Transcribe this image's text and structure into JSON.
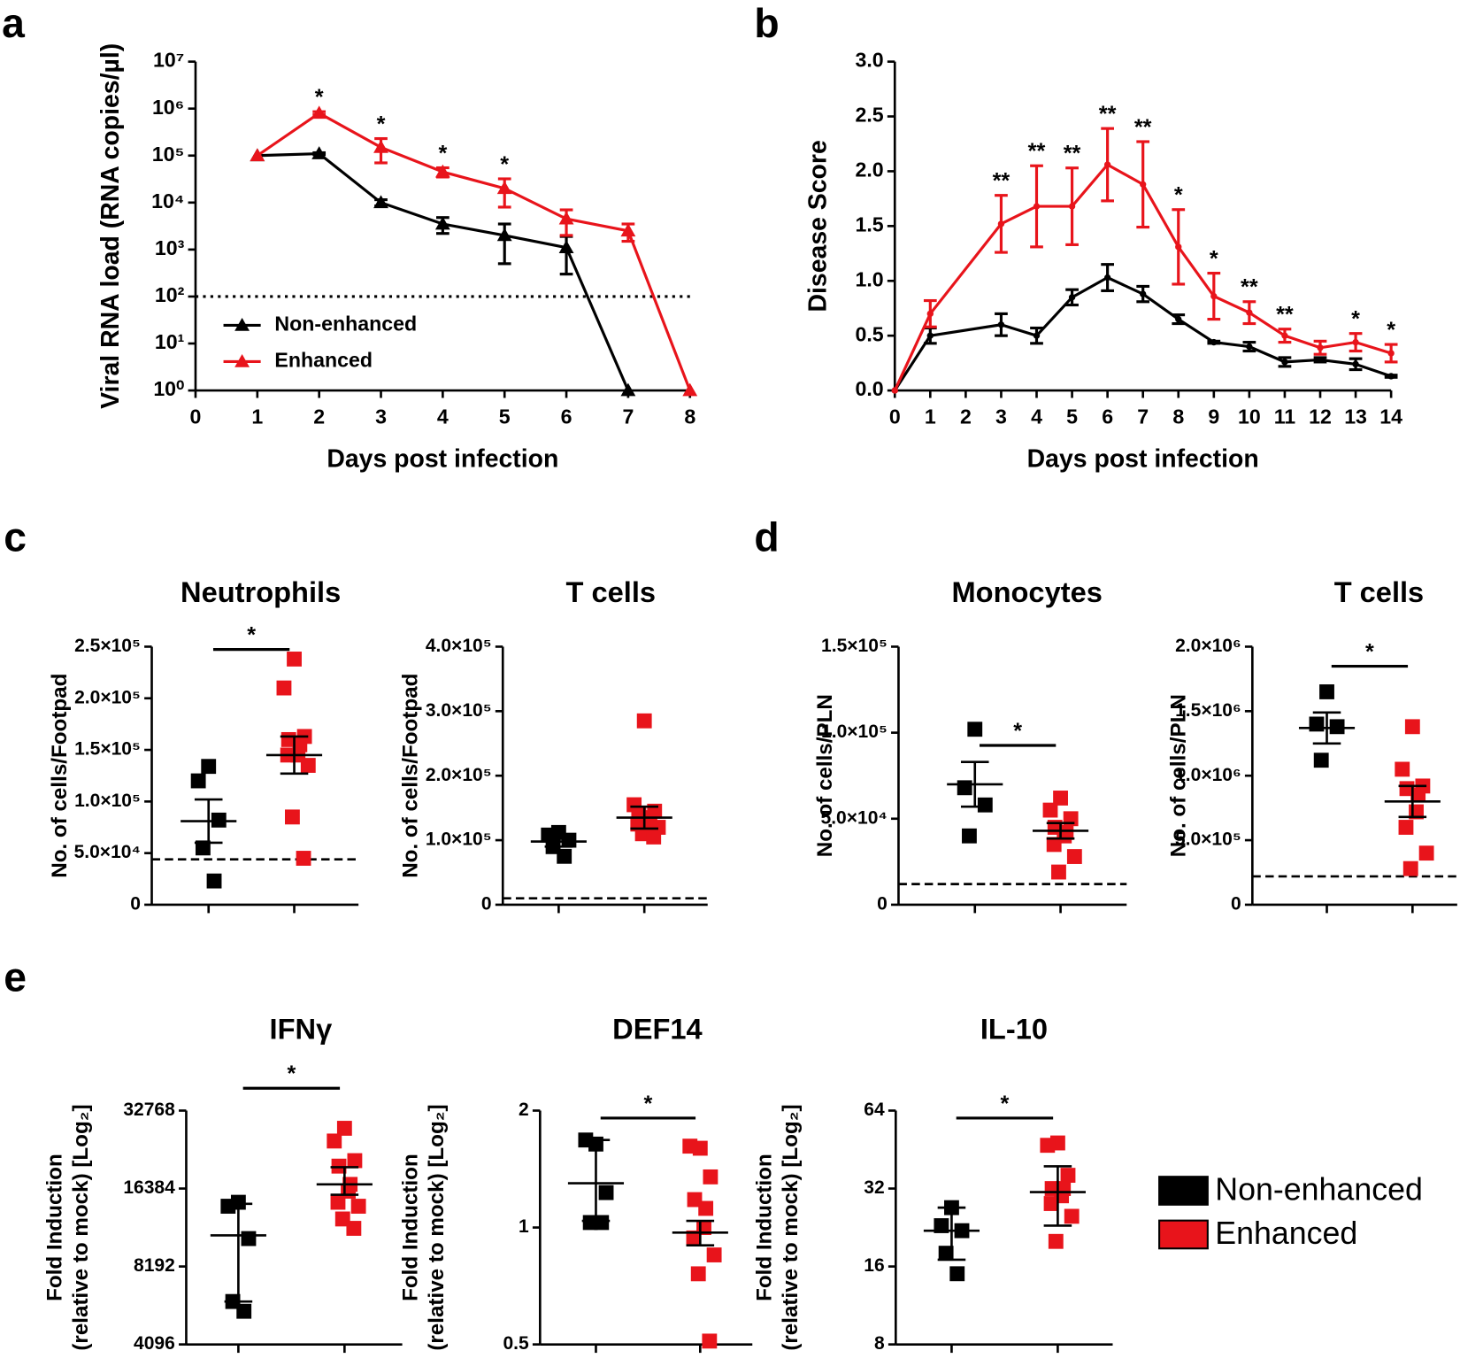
{
  "panel_labels": [
    "a",
    "b",
    "c",
    "d",
    "e"
  ],
  "chart_data": [
    {
      "type": "line",
      "yscale": "log",
      "xlabel": "Days post infection",
      "ylabel": "Viral RNA load (RNA copies/µl)",
      "xlim": [
        0,
        8
      ],
      "xticks": [
        0,
        1,
        2,
        3,
        4,
        5,
        6,
        7,
        8
      ],
      "ylim": [
        1,
        10000000
      ],
      "yticks": [
        {
          "value": 1,
          "label": "10⁰"
        },
        {
          "value": 10,
          "label": "10¹"
        },
        {
          "value": 100,
          "label": "10²"
        },
        {
          "value": 1000,
          "label": "10³"
        },
        {
          "value": 10000,
          "label": "10⁴"
        },
        {
          "value": 100000,
          "label": "10⁵"
        },
        {
          "value": 1000000,
          "label": "10⁶"
        },
        {
          "value": 10000000,
          "label": "10⁷"
        }
      ],
      "detection_limit": 100,
      "marker": "triangle",
      "legend": "left",
      "series": [
        {
          "name": "Non-enhanced",
          "color": "#000000",
          "x": [
            1,
            2,
            3,
            4,
            5,
            6,
            7
          ],
          "values": [
            100000,
            110000,
            10000,
            3500,
            2000,
            1100,
            1
          ],
          "errors": [
            0,
            5000,
            1500,
            1300,
            1500,
            800,
            0
          ]
        },
        {
          "name": "Enhanced",
          "color": "#e8141b",
          "x": [
            1,
            2,
            3,
            4,
            5,
            6,
            7,
            8
          ],
          "values": [
            100000,
            800000,
            150000,
            45000,
            20000,
            4500,
            2500,
            1
          ],
          "errors": [
            0,
            60000,
            80000,
            10000,
            12000,
            2500,
            1000,
            0
          ]
        }
      ],
      "annotations": [
        {
          "x": 2,
          "text": "*"
        },
        {
          "x": 3,
          "text": "*"
        },
        {
          "x": 4,
          "text": "*"
        },
        {
          "x": 5,
          "text": "*"
        }
      ]
    },
    {
      "type": "line",
      "xlabel": "Days post infection",
      "ylabel": "Disease Score",
      "xlim": [
        0,
        14
      ],
      "xticks": [
        0,
        1,
        2,
        3,
        4,
        5,
        6,
        7,
        8,
        9,
        10,
        11,
        12,
        13,
        14
      ],
      "ylim": [
        0,
        3
      ],
      "yticks": [
        {
          "value": 0,
          "label": "0.0"
        },
        0.5,
        {
          "value": 1,
          "label": "1.0"
        },
        1.5,
        {
          "value": 2,
          "label": "2.0"
        },
        2.5,
        {
          "value": 3,
          "label": "3.0"
        }
      ],
      "marker": "dot",
      "x": [
        0,
        1,
        3,
        4,
        5,
        6,
        7,
        8,
        9,
        10,
        11,
        12,
        13,
        14
      ],
      "series": [
        {
          "name": "Non-enhanced",
          "color": "#000000",
          "values": [
            0,
            0.5,
            0.6,
            0.5,
            0.85,
            1.03,
            0.88,
            0.65,
            0.44,
            0.4,
            0.26,
            0.28,
            0.24,
            0.13
          ],
          "errors": [
            0,
            0.07,
            0.1,
            0.07,
            0.07,
            0.12,
            0.07,
            0.04,
            0.01,
            0.04,
            0.04,
            0.02,
            0.05,
            0.01
          ]
        },
        {
          "name": "Enhanced",
          "color": "#e8141b",
          "values": [
            0,
            0.7,
            1.52,
            1.68,
            1.68,
            2.06,
            1.88,
            1.31,
            0.86,
            0.71,
            0.5,
            0.39,
            0.44,
            0.34
          ],
          "errors": [
            0,
            0.12,
            0.26,
            0.37,
            0.35,
            0.33,
            0.39,
            0.34,
            0.21,
            0.1,
            0.06,
            0.06,
            0.08,
            0.08
          ]
        }
      ],
      "annotations": [
        {
          "x": 3,
          "text": "**"
        },
        {
          "x": 4,
          "text": "**"
        },
        {
          "x": 5,
          "text": "**"
        },
        {
          "x": 6,
          "text": "**"
        },
        {
          "x": 7,
          "text": "**"
        },
        {
          "x": 8,
          "text": "*"
        },
        {
          "x": 9,
          "text": "*"
        },
        {
          "x": 10,
          "text": "**"
        },
        {
          "x": 11,
          "text": "**"
        },
        {
          "x": 13,
          "text": "*"
        },
        {
          "x": 14,
          "text": "*"
        }
      ]
    },
    {
      "type": "dot",
      "title": "Neutrophils",
      "ylabel": [
        "No. of cells/Footpad"
      ],
      "ylim": [
        0,
        250000
      ],
      "yticks": [
        0,
        {
          "value": 50000,
          "label": "5.0×10⁴"
        },
        {
          "value": 100000,
          "label": "1.0×10⁵"
        },
        {
          "value": 150000,
          "label": "1.5×10⁵"
        },
        {
          "value": 200000,
          "label": "2.0×10⁵"
        },
        {
          "value": 250000,
          "label": "2.5×10⁵"
        }
      ],
      "detection_limit": 44000,
      "significance": "*",
      "series": [
        {
          "name": "Non-enhanced",
          "color": "#000000",
          "values": [
            134000,
            120000,
            82000,
            55000,
            23000
          ],
          "mean": 81000,
          "sem": 21000
        },
        {
          "name": "Enhanced",
          "color": "#e8141b",
          "values": [
            238000,
            210000,
            163000,
            160000,
            155000,
            145000,
            145000,
            135000,
            85000,
            45000
          ],
          "mean": 145000,
          "sem": 18000
        }
      ]
    },
    {
      "type": "dot",
      "title": "T cells",
      "ylabel": [
        "No. of cells/Footpad"
      ],
      "ylim": [
        0,
        400000
      ],
      "yticks": [
        0,
        {
          "value": 100000,
          "label": "1.0×10⁵"
        },
        {
          "value": 200000,
          "label": "2.0×10⁵"
        },
        {
          "value": 300000,
          "label": "3.0×10⁵"
        },
        {
          "value": 400000,
          "label": "4.0×10⁵"
        }
      ],
      "detection_limit": 10000,
      "series": [
        {
          "name": "Non-enhanced",
          "color": "#000000",
          "values": [
            112000,
            108000,
            100000,
            90000,
            75000
          ],
          "mean": 98000,
          "sem": 8000
        },
        {
          "name": "Enhanced",
          "color": "#e8141b",
          "values": [
            285000,
            155000,
            145000,
            140000,
            135000,
            130000,
            125000,
            120000,
            110000,
            105000
          ],
          "mean": 135000,
          "sem": 17000
        }
      ]
    },
    {
      "type": "dot",
      "title": "Monocytes",
      "ylabel": [
        "No. of cells/PLN"
      ],
      "ylim": [
        0,
        150000
      ],
      "yticks": [
        0,
        {
          "value": 50000,
          "label": "5.0×10⁴"
        },
        {
          "value": 100000,
          "label": "1.0×10⁵"
        },
        {
          "value": 150000,
          "label": "1.5×10⁵"
        }
      ],
      "detection_limit": 12000,
      "significance": "*",
      "series": [
        {
          "name": "Non-enhanced",
          "color": "#000000",
          "values": [
            102000,
            68000,
            58000,
            40000
          ],
          "mean": 70000,
          "sem": 13000
        },
        {
          "name": "Enhanced",
          "color": "#e8141b",
          "values": [
            62000,
            55000,
            50000,
            45000,
            42000,
            40000,
            35000,
            28000,
            19000
          ],
          "mean": 43000,
          "sem": 4500
        }
      ]
    },
    {
      "type": "dot",
      "title": "T cells",
      "ylabel": [
        "No. of cells/PLN"
      ],
      "ylim": [
        0,
        2000000
      ],
      "yticks": [
        0,
        {
          "value": 500000,
          "label": "5.0×10⁵"
        },
        {
          "value": 1000000,
          "label": "1.0×10⁶"
        },
        {
          "value": 1500000,
          "label": "1.5×10⁶"
        },
        {
          "value": 2000000,
          "label": "2.0×10⁶"
        }
      ],
      "detection_limit": 220000,
      "significance": "*",
      "series": [
        {
          "name": "Non-enhanced",
          "color": "#000000",
          "values": [
            1650000,
            1400000,
            1380000,
            1120000
          ],
          "mean": 1370000,
          "sem": 120000
        },
        {
          "name": "Enhanced",
          "color": "#e8141b",
          "values": [
            1380000,
            1050000,
            920000,
            900000,
            850000,
            720000,
            600000,
            400000,
            280000
          ],
          "mean": 800000,
          "sem": 120000
        }
      ]
    },
    {
      "type": "dot",
      "yscale": "log",
      "title": "IFNγ",
      "ylabel": [
        "Fold Induction",
        "(relative to mock) [Log₂]"
      ],
      "ylim": [
        4096,
        32768
      ],
      "yticks": [
        4096,
        8192,
        16384,
        32768
      ],
      "significance": "*",
      "series": [
        {
          "name": "Non-enhanced",
          "color": "#000000",
          "values": [
            14500,
            14000,
            10500,
            6000,
            5500
          ],
          "mean": 10800,
          "low": 6000,
          "high": 14300
        },
        {
          "name": "Enhanced",
          "color": "#e8141b",
          "values": [
            28000,
            25000,
            21000,
            20000,
            17000,
            16000,
            14500,
            14000,
            12500,
            11500
          ],
          "mean": 17000,
          "low": 15500,
          "high": 19800
        }
      ]
    },
    {
      "type": "dot",
      "yscale": "log",
      "title": "DEF14",
      "ylabel": [
        "Fold Induction",
        "(relative to mock) [Log₂]"
      ],
      "ylim": [
        0.5,
        2
      ],
      "yticks": [
        0.5,
        1,
        2
      ],
      "significance": "*",
      "series": [
        {
          "name": "Non-enhanced",
          "color": "#000000",
          "values": [
            1.64,
            1.68,
            1.23,
            1.03,
            1.03
          ],
          "mean": 1.3,
          "low": 1.04,
          "high": 1.68
        },
        {
          "name": "Enhanced",
          "color": "#e8141b",
          "values": [
            1.6,
            1.62,
            1.35,
            1.18,
            1.12,
            1.0,
            0.94,
            0.85,
            0.76,
            0.51
          ],
          "mean": 0.97,
          "low": 0.9,
          "high": 1.04
        }
      ]
    },
    {
      "type": "dot",
      "yscale": "log",
      "title": "IL-10",
      "ylabel": [
        "Fold Induction",
        "(relative to mock) [Log₂]"
      ],
      "ylim": [
        8,
        64
      ],
      "yticks": [
        8,
        16,
        32,
        64
      ],
      "significance": "*",
      "series": [
        {
          "name": "Non-enhanced",
          "color": "#000000",
          "values": [
            27,
            23,
            22,
            18,
            15
          ],
          "mean": 22,
          "low": 17,
          "high": 27
        },
        {
          "name": "Enhanced",
          "color": "#e8141b",
          "values": [
            48,
            47,
            36,
            32,
            32,
            30,
            28,
            25,
            20
          ],
          "mean": 31,
          "low": 23,
          "high": 39
        }
      ]
    }
  ]
}
